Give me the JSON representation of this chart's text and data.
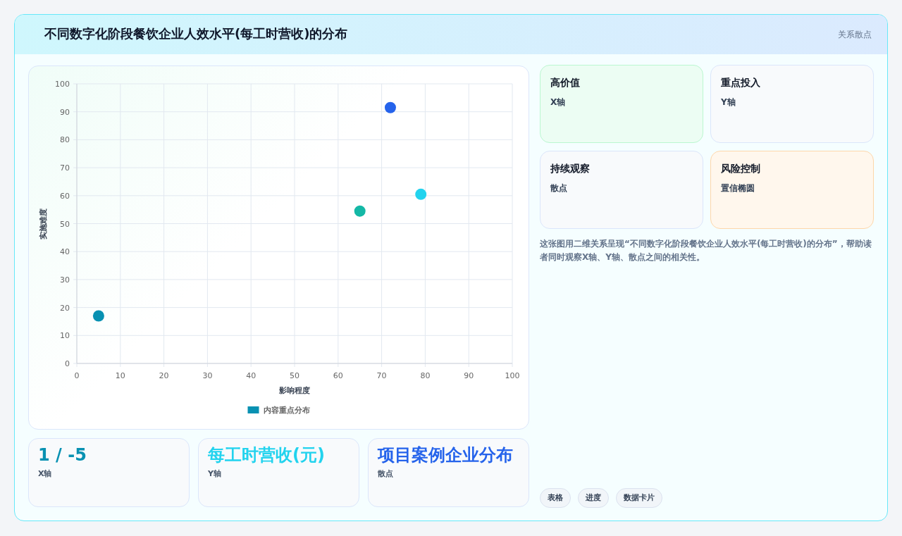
{
  "chart_data": [
    {
      "type": "scatter",
      "title": "不同数字化阶段餐饮企业人效水平(每工时营收)的分布",
      "xlabel": "影响程度",
      "ylabel": "实施难度",
      "x": [
        5,
        65,
        72,
        79
      ],
      "series": [
        {
          "name": "内容重点分布",
          "color": "#0891b2",
          "colors": [
            "#0891b2",
            "#14b8a6",
            "#2563eb",
            "#22d3ee"
          ],
          "values": [
            17,
            54.5,
            91.5,
            60.5
          ]
        }
      ],
      "xlim": [
        0,
        100
      ],
      "ylim": [
        0,
        100
      ],
      "xticks": [
        0,
        10,
        20,
        30,
        40,
        50,
        60,
        70,
        80,
        90,
        100
      ],
      "yticks": [
        0,
        10,
        20,
        30,
        40,
        50,
        60,
        70,
        80,
        90,
        100
      ],
      "grid": true,
      "legend": "bottom",
      "marker": "circle"
    },
    {
      "type": "other",
      "annotations": [
        "高价值",
        "X轴",
        "重点投入",
        "Y轴",
        "持续观察",
        "散点",
        "风险控制",
        "置信椭圆",
        "这张图用二维关系呈现“不同数字化阶段餐饮企业人效水平(每工时营收)的分布”，帮助读者同时观察X轴、Y轴、散点之间的相关性。",
        "1 / -5",
        "X轴",
        "每工时营收(元)",
        "Y轴",
        "项目案例企业分布",
        "散点",
        "表格",
        "进度",
        "数据卡片",
        "关系散点"
      ]
    }
  ]
}
